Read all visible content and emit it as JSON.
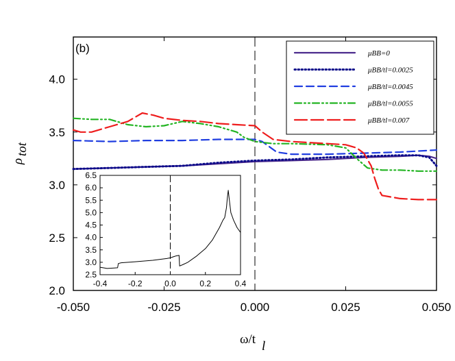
{
  "chart_data": {
    "type": "line",
    "panel_label": "(b)",
    "xlabel": "ω/t",
    "xlabel_sub": "l",
    "ylabel": "ρ",
    "ylabel_sub": "tot",
    "xlim": [
      -0.05,
      0.05
    ],
    "ylim": [
      2.0,
      4.4
    ],
    "xticks": [
      -0.05,
      -0.025,
      0.0,
      0.025,
      0.05
    ],
    "xtick_labels": [
      "-0.050",
      "-0.025",
      "0.000",
      "0.025",
      "0.050"
    ],
    "yticks": [
      2.0,
      2.5,
      3.0,
      3.5,
      4.0
    ],
    "ytick_labels": [
      "2.0",
      "2.5",
      "3.0",
      "3.5",
      "4.0"
    ],
    "vline_x": 0.0,
    "series": [
      {
        "name": "μBB=0",
        "legend": "μ_B B=0",
        "color": "#4b2a8c",
        "dash": "",
        "width": 2.2,
        "x": [
          -0.05,
          -0.04,
          -0.03,
          -0.02,
          -0.01,
          0.0,
          0.01,
          0.02,
          0.03,
          0.04,
          0.045,
          0.048,
          0.05
        ],
        "y": [
          3.15,
          3.16,
          3.17,
          3.18,
          3.2,
          3.22,
          3.23,
          3.24,
          3.26,
          3.27,
          3.28,
          3.27,
          3.25
        ]
      },
      {
        "name": "μBB/tl=0.0025",
        "legend": "μ_B B/t_l=0.0025",
        "color": "#0a0a8a",
        "dash": "1.5,3.5",
        "width": 3,
        "x": [
          -0.05,
          -0.04,
          -0.03,
          -0.02,
          -0.01,
          0.0,
          0.01,
          0.02,
          0.03,
          0.04,
          0.045,
          0.048,
          0.049,
          0.05
        ],
        "y": [
          3.15,
          3.16,
          3.17,
          3.18,
          3.21,
          3.23,
          3.24,
          3.26,
          3.27,
          3.28,
          3.28,
          3.26,
          3.22,
          3.18
        ]
      },
      {
        "name": "μBB/tl=0.0045",
        "legend": "μ_B B/t_l=0.0045",
        "color": "#1f3de0",
        "dash": "11,6",
        "width": 2.2,
        "x": [
          -0.05,
          -0.04,
          -0.03,
          -0.02,
          -0.01,
          -0.005,
          0.0,
          0.002,
          0.004,
          0.006,
          0.01,
          0.02,
          0.03,
          0.04,
          0.05
        ],
        "y": [
          3.42,
          3.41,
          3.42,
          3.42,
          3.43,
          3.43,
          3.43,
          3.41,
          3.36,
          3.31,
          3.29,
          3.29,
          3.3,
          3.31,
          3.33
        ]
      },
      {
        "name": "μBB/tl=0.0055",
        "legend": "μ_B B/t_l=0.0055",
        "color": "#22b422",
        "dash": "10,4,2,4,2,4",
        "width": 2.2,
        "x": [
          -0.05,
          -0.045,
          -0.04,
          -0.035,
          -0.03,
          -0.025,
          -0.02,
          -0.015,
          -0.01,
          -0.005,
          -0.003,
          0.0,
          0.005,
          0.01,
          0.02,
          0.025,
          0.028,
          0.031,
          0.035,
          0.04,
          0.045,
          0.05
        ],
        "y": [
          3.63,
          3.62,
          3.62,
          3.57,
          3.55,
          3.56,
          3.6,
          3.58,
          3.55,
          3.5,
          3.45,
          3.41,
          3.39,
          3.39,
          3.38,
          3.35,
          3.25,
          3.16,
          3.14,
          3.14,
          3.13,
          3.13
        ]
      },
      {
        "name": "μBB/tl=0.007",
        "legend": "μ_B B/t_l=0.007",
        "color": "#ee1c1c",
        "dash": "18,6",
        "width": 2.2,
        "x": [
          -0.05,
          -0.048,
          -0.045,
          -0.04,
          -0.035,
          -0.031,
          -0.028,
          -0.025,
          -0.02,
          -0.015,
          -0.01,
          -0.005,
          0.0,
          0.002,
          0.005,
          0.01,
          0.015,
          0.02,
          0.025,
          0.028,
          0.03,
          0.032,
          0.033,
          0.034,
          0.035,
          0.04,
          0.045,
          0.05
        ],
        "y": [
          3.52,
          3.5,
          3.5,
          3.55,
          3.6,
          3.68,
          3.66,
          3.63,
          3.61,
          3.6,
          3.58,
          3.57,
          3.56,
          3.5,
          3.43,
          3.41,
          3.4,
          3.39,
          3.38,
          3.35,
          3.3,
          3.18,
          3.06,
          2.96,
          2.9,
          2.87,
          2.86,
          2.86
        ]
      }
    ],
    "inset": {
      "type": "line",
      "xlim": [
        -0.4,
        0.4
      ],
      "ylim": [
        2.5,
        6.5
      ],
      "xticks": [
        -0.4,
        -0.2,
        0.0,
        0.2,
        0.4
      ],
      "xtick_labels": [
        "-0.4",
        "-0.2",
        "0.0",
        "0.2",
        "0.4"
      ],
      "yticks": [
        2.5,
        3.0,
        3.5,
        4.0,
        4.5,
        5.0,
        5.5,
        6.0,
        6.5
      ],
      "ytick_labels": [
        "2.5",
        "3.0",
        "3.5",
        "4.0",
        "4.5",
        "5.0",
        "5.5",
        "6.0",
        "6.5"
      ],
      "vline_x": 0.0,
      "color": "#000000",
      "x": [
        -0.4,
        -0.36,
        -0.32,
        -0.3,
        -0.296,
        -0.28,
        -0.2,
        -0.1,
        -0.02,
        0.0,
        0.03,
        0.05,
        0.053,
        0.07,
        0.1,
        0.15,
        0.2,
        0.24,
        0.28,
        0.3,
        0.31,
        0.32,
        0.325,
        0.33,
        0.335,
        0.34,
        0.345,
        0.35,
        0.36,
        0.38,
        0.4
      ],
      "y": [
        2.8,
        2.75,
        2.77,
        2.78,
        2.95,
        2.98,
        3.02,
        3.08,
        3.15,
        3.18,
        3.25,
        3.28,
        2.85,
        2.9,
        3.0,
        3.25,
        3.55,
        3.9,
        4.4,
        4.7,
        4.8,
        5.2,
        5.6,
        5.9,
        5.6,
        5.3,
        5.0,
        4.9,
        4.7,
        4.4,
        4.2
      ]
    }
  }
}
